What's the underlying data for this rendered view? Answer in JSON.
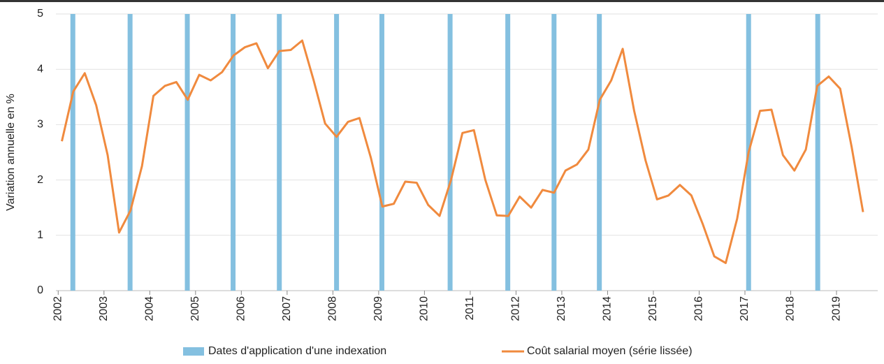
{
  "chart_data": {
    "type": "line",
    "y_label": "Variation annuelle en %",
    "xlim": [
      2001.95,
      2019.9
    ],
    "xticks": [
      2002,
      2003,
      2004,
      2005,
      2006,
      2007,
      2008,
      2009,
      2010,
      2011,
      2012,
      2013,
      2014,
      2015,
      2016,
      2017,
      2018,
      2019
    ],
    "ylim": [
      0,
      5
    ],
    "yticks": [
      0,
      1,
      2,
      3,
      4,
      5
    ],
    "grid": true,
    "legend": "bottom",
    "series": [
      {
        "name": "Dates d'application d'une indexation",
        "type": "bar",
        "color": "#84c0e0",
        "x": [
          2002.32,
          2003.57,
          2004.82,
          2005.82,
          2006.83,
          2008.08,
          2009.07,
          2010.56,
          2011.82,
          2012.83,
          2013.82,
          2017.08,
          2018.59
        ],
        "values": [
          5,
          5,
          5,
          5,
          5,
          5,
          5,
          5,
          5,
          5,
          5,
          5,
          5
        ]
      },
      {
        "name": "Coût salarial moyen (série lissée)",
        "type": "line",
        "color": "#f08a3e",
        "x": [
          2002.08,
          2002.33,
          2002.58,
          2002.83,
          2003.08,
          2003.33,
          2003.58,
          2003.83,
          2004.08,
          2004.33,
          2004.58,
          2004.83,
          2005.08,
          2005.33,
          2005.58,
          2005.83,
          2006.08,
          2006.33,
          2006.58,
          2006.83,
          2007.08,
          2007.33,
          2007.58,
          2007.83,
          2008.08,
          2008.33,
          2008.58,
          2008.83,
          2009.08,
          2009.33,
          2009.58,
          2009.83,
          2010.08,
          2010.33,
          2010.58,
          2010.83,
          2011.08,
          2011.33,
          2011.58,
          2011.83,
          2012.08,
          2012.33,
          2012.58,
          2012.83,
          2013.08,
          2013.33,
          2013.58,
          2013.83,
          2014.08,
          2014.33,
          2014.58,
          2014.83,
          2015.08,
          2015.33,
          2015.58,
          2015.83,
          2016.08,
          2016.33,
          2016.58,
          2016.83,
          2017.08,
          2017.33,
          2017.58,
          2017.83,
          2018.08,
          2018.33,
          2018.58,
          2018.83,
          2019.08,
          2019.33,
          2019.58
        ],
        "values": [
          2.7,
          3.6,
          3.93,
          3.35,
          2.45,
          1.05,
          1.45,
          2.25,
          3.52,
          3.7,
          3.77,
          3.45,
          3.9,
          3.8,
          3.95,
          4.25,
          4.4,
          4.47,
          4.02,
          4.33,
          4.35,
          4.52,
          3.8,
          3.02,
          2.78,
          3.05,
          3.12,
          2.4,
          1.52,
          1.57,
          1.97,
          1.95,
          1.55,
          1.35,
          2.0,
          2.85,
          2.9,
          2.0,
          1.36,
          1.35,
          1.7,
          1.5,
          1.82,
          1.77,
          2.17,
          2.28,
          2.55,
          3.45,
          3.8,
          4.37,
          3.25,
          2.35,
          1.65,
          1.72,
          1.91,
          1.72,
          1.2,
          0.62,
          0.5,
          1.3,
          2.5,
          3.25,
          3.27,
          2.45,
          2.17,
          2.55,
          3.7,
          3.87,
          3.65,
          2.6,
          1.42
        ]
      }
    ]
  }
}
